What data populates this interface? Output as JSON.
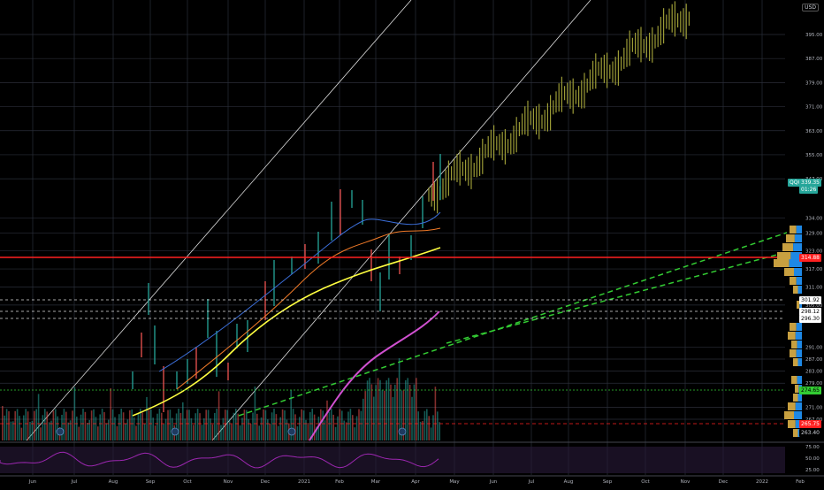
{
  "chart": {
    "symbol": "QQQ",
    "currency": "USD",
    "last_price": "339.35",
    "countdown": "01:26",
    "marker_labels": {
      "red_level": "314.88",
      "white_1": "301.92",
      "white_2": "298.12",
      "white_3": "296.30",
      "green_level": "274.65",
      "red_dashed": "265.75",
      "bottom": "263.40"
    },
    "price_axis_ticks": [
      "395.00",
      "387.00",
      "379.00",
      "371.00",
      "363.00",
      "355.00",
      "347.00",
      "334.00",
      "329.00",
      "323.00",
      "317.00",
      "311.00",
      "305.00",
      "291.00",
      "287.00",
      "283.00",
      "279.00",
      "271.00",
      "267.00"
    ],
    "rsi_ticks": [
      "75.00",
      "50.00",
      "25.00"
    ],
    "time_axis": [
      "Jun",
      "Jul",
      "Aug",
      "Sep",
      "Oct",
      "Nov",
      "Dec",
      "2021",
      "Feb",
      "Mar",
      "Apr",
      "May",
      "Jun",
      "Jul",
      "Aug",
      "Sep",
      "Oct",
      "Nov",
      "Dec",
      "2022",
      "Feb"
    ]
  },
  "colors": {
    "background": "#000000",
    "grid": "#2a2e39",
    "up_candle": "#26a69a",
    "down_candle": "#ef5350",
    "projection": "#9b9b36",
    "ma_yellow": "#ffff40",
    "ma_magenta": "#d050d0",
    "ma_orange": "#f07a28",
    "ma_blue": "#3b6ed8",
    "trend_green": "#33cc33",
    "resistance_red": "#ff2020",
    "volume_profile_blue": "#1e88e5",
    "volume_profile_gold": "#c8a040",
    "rsi_line": "#9c27b0"
  }
}
